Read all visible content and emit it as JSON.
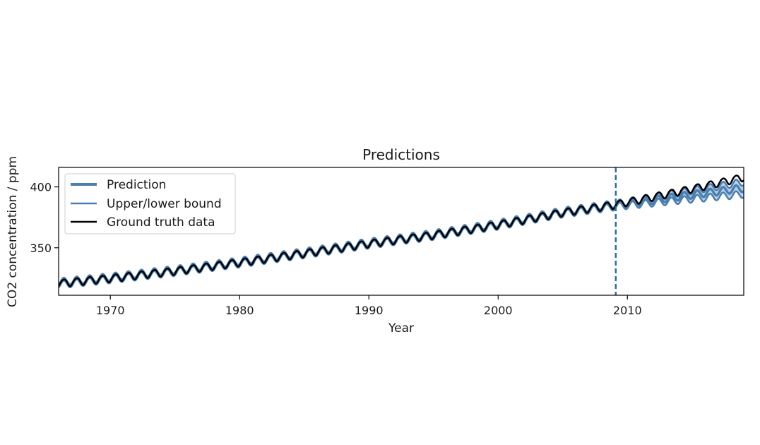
{
  "chart_data": {
    "type": "line",
    "title": "Predictions",
    "xlabel": "Year",
    "ylabel": "CO2 concentration / ppm",
    "xlim": [
      1966.0,
      2019.0
    ],
    "ylim": [
      311.0,
      416.0
    ],
    "x_ticks": [
      1970,
      1980,
      1990,
      2000,
      2010
    ],
    "x_tick_labels": [
      "1970",
      "1980",
      "1990",
      "2000",
      "2010"
    ],
    "y_ticks": [
      350,
      400
    ],
    "y_tick_labels": [
      "350",
      "400"
    ],
    "grid": false,
    "legend_position": "upper-left",
    "forecast_start": 2009.1,
    "colors": {
      "prediction": "#4a7fb0",
      "bound": "#4a7fb0",
      "band": "#a9c6e2",
      "ground_truth": "#000000",
      "divider": "#2a6f9e"
    },
    "series": [
      {
        "name": "Prediction",
        "kind": "prediction"
      },
      {
        "name": "Upper/lower bound",
        "kind": "bound"
      },
      {
        "name": "Ground truth data",
        "kind": "ground_truth"
      }
    ],
    "model": {
      "trend_knots": [
        [
          1966.0,
          320.8
        ],
        [
          1970.0,
          325.0
        ],
        [
          1975.0,
          331.0
        ],
        [
          1980.0,
          338.0
        ],
        [
          1985.0,
          345.5
        ],
        [
          1990.0,
          353.5
        ],
        [
          1995.0,
          360.5
        ],
        [
          2000.0,
          369.0
        ],
        [
          2005.0,
          379.0
        ],
        [
          2009.1,
          385.5
        ],
        [
          2015.0,
          398.5
        ],
        [
          2019.0,
          408.0
        ]
      ],
      "prediction_knots": [
        [
          1966.0,
          320.8
        ],
        [
          1970.0,
          325.0
        ],
        [
          1975.0,
          331.0
        ],
        [
          1980.0,
          338.0
        ],
        [
          1985.0,
          345.5
        ],
        [
          1990.0,
          353.5
        ],
        [
          1995.0,
          360.5
        ],
        [
          2000.0,
          369.0
        ],
        [
          2005.0,
          379.0
        ],
        [
          2009.1,
          385.0
        ],
        [
          2015.0,
          393.5
        ],
        [
          2019.0,
          399.0
        ]
      ],
      "band_halfwidth_history": 1.2,
      "band_halfwidth_end": 5.0,
      "seasonal_amplitude": 3.0
    }
  }
}
